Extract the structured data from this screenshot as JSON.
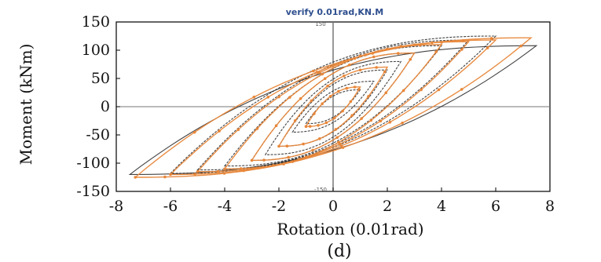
{
  "chart_data": {
    "type": "line",
    "title": "verify 0.01rad,KN.M",
    "xlabel": "Rotation (0.01rad)",
    "ylabel": "Moment (kNm)",
    "panel_label": "(d)",
    "xlim": [
      -8,
      8
    ],
    "ylim": [
      -150,
      150
    ],
    "x_ticks": [
      -8,
      -6,
      -4,
      -2,
      0,
      2,
      4,
      6,
      8
    ],
    "y_ticks": [
      -150,
      -100,
      -50,
      0,
      50,
      100,
      150
    ],
    "x_tick_labels": [
      "-8",
      "-6",
      "-4",
      "-2",
      "0",
      "2",
      "4",
      "6",
      "8"
    ],
    "y_tick_labels": [
      "-150",
      "-100",
      "-50",
      "0",
      "50",
      "100",
      "150"
    ],
    "inner_axis_labels": {
      "top": "150",
      "bottom": "-150",
      "left": "-8",
      "right": "8"
    },
    "colors": {
      "experiment": "#222222",
      "verify": "#e8873a",
      "axis": "#000000",
      "zero_lines": "#777777"
    },
    "series": [
      {
        "style": "experiment",
        "loops": [
          {
            "amp": 1.0,
            "pos_peak": 30,
            "neg_peak": -30
          },
          {
            "amp": 1.5,
            "pos_peak": 45,
            "neg_peak": -45
          },
          {
            "amp": 2.0,
            "pos_peak": 65,
            "neg_peak": -70
          },
          {
            "amp": 2.5,
            "pos_peak": 80,
            "neg_peak": -85
          },
          {
            "amp": 3.0,
            "pos_peak": 95,
            "neg_peak": -95
          },
          {
            "amp": 4.0,
            "pos_peak": 108,
            "neg_peak": -105
          },
          {
            "amp": 5.0,
            "pos_peak": 118,
            "neg_peak": -112
          },
          {
            "amp": 6.0,
            "pos_peak": 125,
            "neg_peak": -118
          },
          {
            "amp": 7.5,
            "pos_peak": 108,
            "neg_peak": -120
          }
        ]
      },
      {
        "style": "verify",
        "loops": [
          {
            "amp": 1.0,
            "pos_peak": 35,
            "neg_peak": -35
          },
          {
            "amp": 2.0,
            "pos_peak": 70,
            "neg_peak": -70
          },
          {
            "amp": 3.0,
            "pos_peak": 95,
            "neg_peak": -95
          },
          {
            "amp": 4.0,
            "pos_peak": 110,
            "neg_peak": -110
          },
          {
            "amp": 5.0,
            "pos_peak": 115,
            "neg_peak": -115
          },
          {
            "amp": 6.0,
            "pos_peak": 118,
            "neg_peak": -120
          },
          {
            "amp": 7.3,
            "pos_peak": 122,
            "neg_peak": -125
          }
        ]
      }
    ]
  }
}
